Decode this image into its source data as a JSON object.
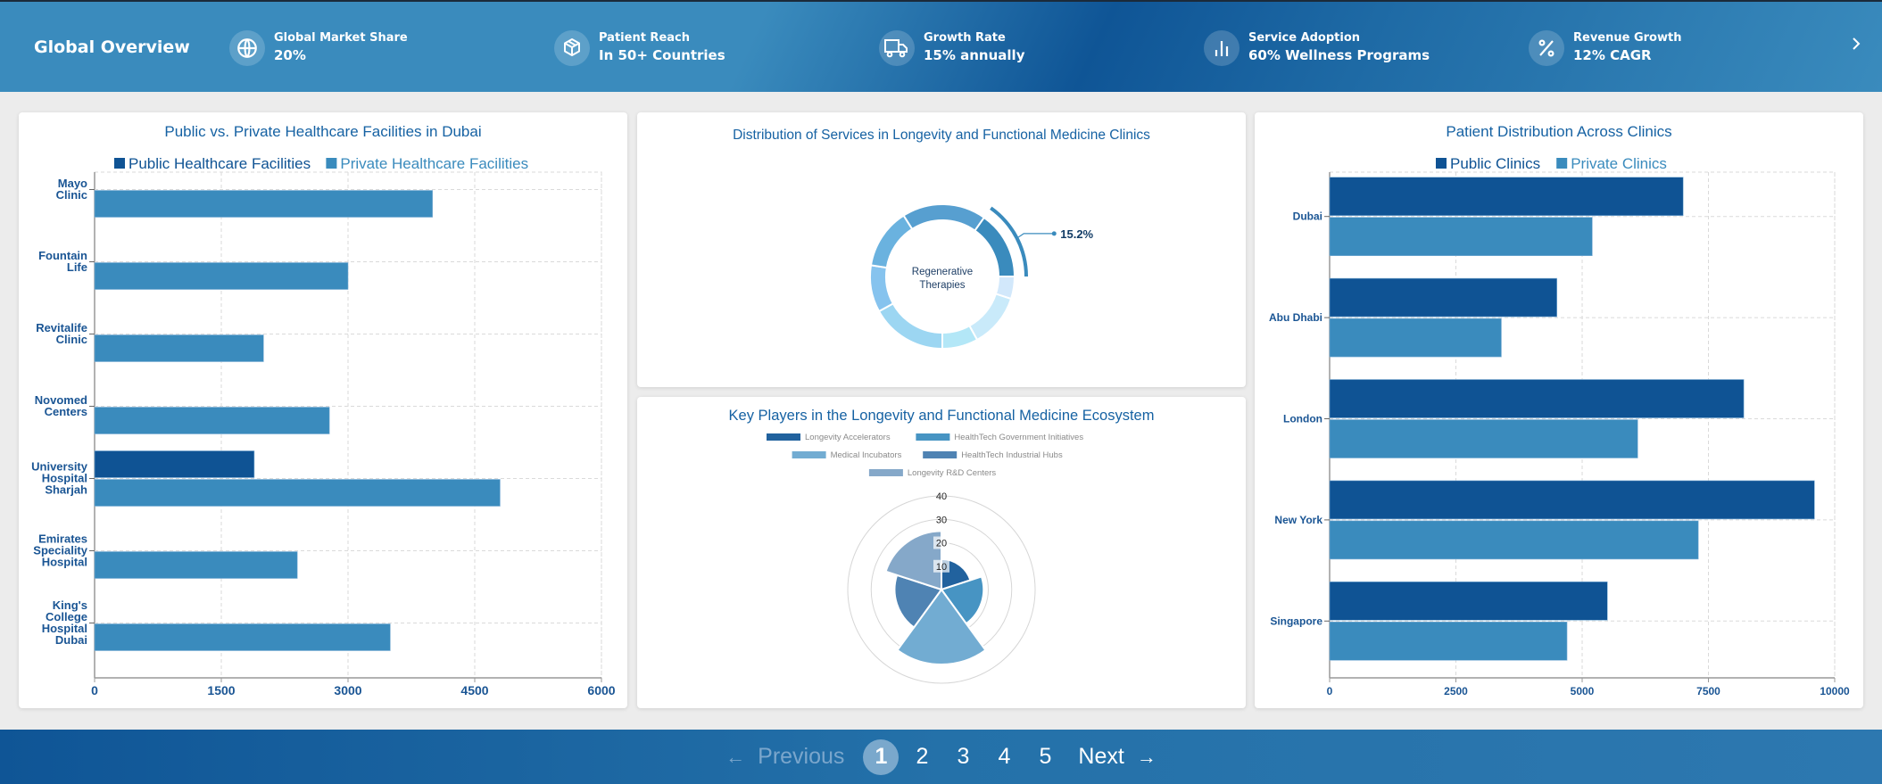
{
  "header": {
    "brand": "Global Overview",
    "stats": [
      {
        "icon": "globe-icon",
        "label": "Global Market Share",
        "value": "20%"
      },
      {
        "icon": "package-icon",
        "label": "Patient Reach",
        "value": "In 50+ Countries"
      },
      {
        "icon": "truck-icon",
        "label": "Growth Rate",
        "value": "15% annually"
      },
      {
        "icon": "bar-chart-icon",
        "label": "Service Adoption",
        "value": "60% Wellness Programs"
      },
      {
        "icon": "percent-icon",
        "label": "Revenue Growth",
        "value": "12% CAGR"
      }
    ],
    "next_icon": "chevron-right-icon"
  },
  "pagination": {
    "previous": "Previous",
    "next": "Next",
    "pages": [
      "1",
      "2",
      "3",
      "4",
      "5"
    ],
    "current": "1",
    "prev_arrow": "←",
    "next_arrow": "→"
  },
  "colors": {
    "public": "#0f5394",
    "private": "#3a8bbd",
    "title": "#1662a3",
    "axis_label": "#1a5594"
  },
  "chart_data": [
    {
      "type": "bar",
      "orientation": "horizontal",
      "title": "Public vs. Private Healthcare Facilities in Dubai",
      "categories": [
        [
          "Mayo",
          "Clinic"
        ],
        [
          "Fountain",
          "Life"
        ],
        [
          "Revitalife",
          "Clinic"
        ],
        [
          "Novomed",
          "Centers"
        ],
        [
          "University",
          "Hospital",
          "Sharjah"
        ],
        [
          "Emirates",
          "Speciality",
          "Hospital"
        ],
        [
          "King's",
          "College",
          "Hospital",
          "Dubai"
        ]
      ],
      "series": [
        {
          "name": "Public Healthcare Facilities",
          "values": [
            0,
            0,
            0,
            0,
            1890,
            0,
            0
          ]
        },
        {
          "name": "Private Healthcare Facilities",
          "values": [
            4000,
            3000,
            2000,
            2780,
            4800,
            2400,
            3500
          ]
        }
      ],
      "xlim": [
        0,
        6000
      ],
      "xticks": [
        "0",
        "1500",
        "3000",
        "4500",
        "6000"
      ],
      "grid": true,
      "legend": "top"
    },
    {
      "type": "pie",
      "title": "Distribution of Services in Longevity and Functional Medicine Clinics",
      "center_label": "Regenerative Therapies",
      "highlight_label": "15.2%",
      "slices": [
        {
          "value": 15.2,
          "color": "#3a8bbd",
          "highlight": true
        },
        {
          "value": 5.0,
          "color": "#d2e8fb"
        },
        {
          "value": 12.0,
          "color": "#c9eafa"
        },
        {
          "value": 8.0,
          "color": "#b3e7f7"
        },
        {
          "value": 17.0,
          "color": "#9cd6f2"
        },
        {
          "value": 10.5,
          "color": "#86c3ee"
        },
        {
          "value": 13.5,
          "color": "#6ab2df"
        },
        {
          "value": 18.8,
          "color": "#579fd0"
        }
      ]
    },
    {
      "type": "polar-area",
      "title": "Key Players in the Longevity and Functional Medicine Ecosystem",
      "categories": [
        "Longevity Accelerators",
        "HealthTech Government Initiatives",
        "Medical Incubators",
        "HealthTech Industrial Hubs",
        "Longevity R&D Centers"
      ],
      "values": [
        13,
        18,
        32,
        20,
        25
      ],
      "colors": [
        "#21629e",
        "#4794c3",
        "#72acd2",
        "#4f83b3",
        "#85a8c9"
      ],
      "rlim": [
        0,
        40
      ],
      "rticks": [
        "10",
        "20",
        "30",
        "40"
      ],
      "legend": "top"
    },
    {
      "type": "bar",
      "orientation": "horizontal",
      "title": "Patient Distribution Across Clinics",
      "categories": [
        "Dubai",
        "Abu Dhabi",
        "London",
        "New York",
        "Singapore"
      ],
      "series": [
        {
          "name": "Public Clinics",
          "values": [
            7000,
            4500,
            8200,
            9600,
            5500
          ]
        },
        {
          "name": "Private Clinics",
          "values": [
            5200,
            3400,
            6100,
            7300,
            4700
          ]
        }
      ],
      "xlim": [
        0,
        10000
      ],
      "xticks": [
        "0",
        "2500",
        "5000",
        "7500",
        "10000"
      ],
      "grid": true,
      "legend": "top"
    }
  ]
}
